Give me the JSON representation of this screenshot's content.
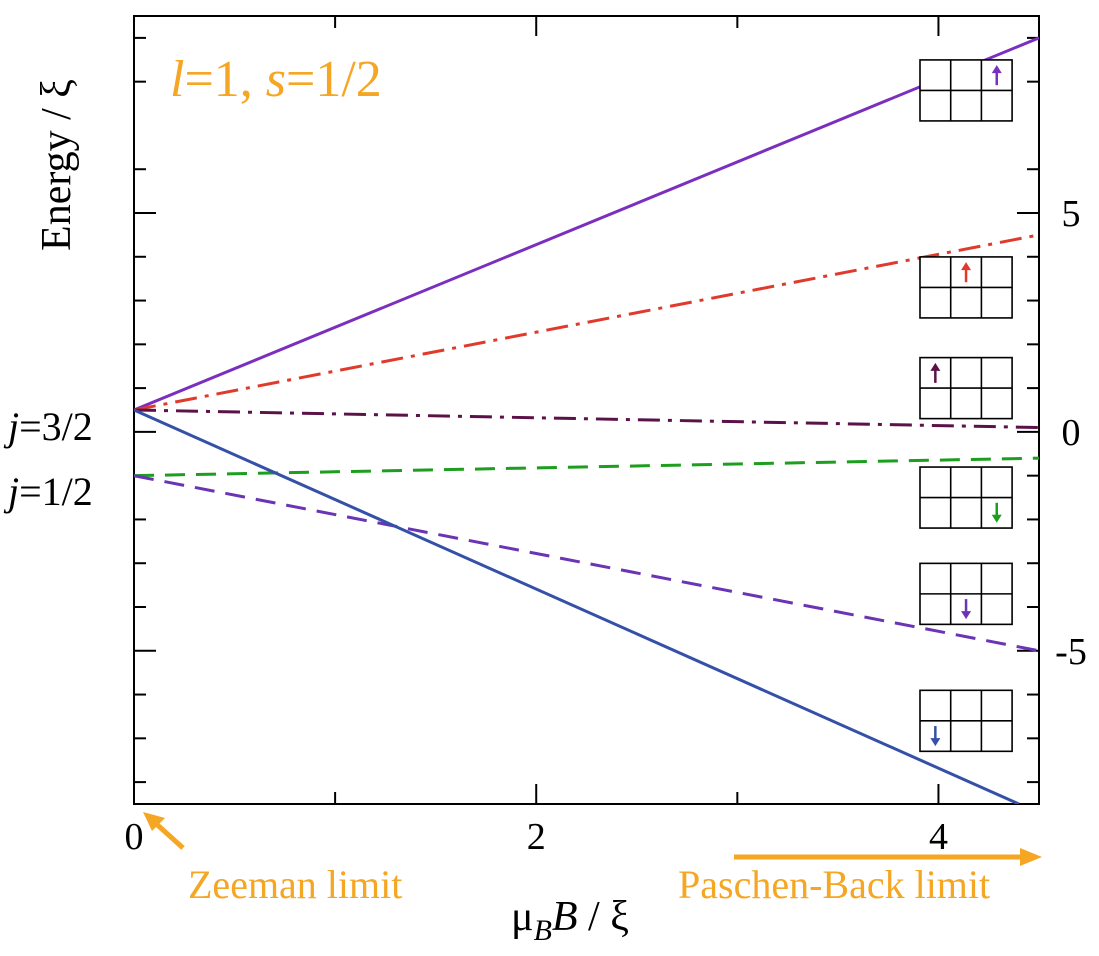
{
  "chart_data": {
    "type": "line",
    "title": "l=1, s=1/2",
    "title_parts": {
      "l": "l",
      "l_eq": "=1, ",
      "s": "s",
      "s_eq": "=1/2"
    },
    "title_color": "#f5a623",
    "xlabel": "μBB / ξ",
    "xlabel_parts": {
      "mu": "μ",
      "sub": "B",
      "var": "B",
      "rest": " / ξ"
    },
    "ylabel": "Energy / ξ",
    "xlim": [
      0,
      4.5
    ],
    "ylim": [
      -8.5,
      9.5
    ],
    "x_ticks": [
      0,
      2,
      4
    ],
    "x_tick_labels": [
      "0",
      "2",
      "4"
    ],
    "x_minor_ticks": [
      1,
      3
    ],
    "y_ticks_right": [
      5,
      0,
      -5
    ],
    "y_tick_labels_right": [
      "5",
      "0",
      "-5"
    ],
    "y_minor_ticks": [
      9,
      8,
      6,
      4,
      3,
      2,
      1,
      -1,
      -2,
      -3,
      -4,
      -6,
      -7,
      -8
    ],
    "level_labels": [
      {
        "j_part": "j",
        "value_part": "=3/2",
        "y": 0.5
      },
      {
        "j_part": "j",
        "value_part": "=1/2",
        "y": -1
      }
    ],
    "series": [
      {
        "color": "#7b2fbe",
        "dash": "solid",
        "x": [
          0,
          4.5
        ],
        "y": [
          0.5,
          9.0
        ]
      },
      {
        "color": "#e03a2c",
        "dash": "dashdot",
        "x": [
          0,
          4.5
        ],
        "y": [
          0.5,
          4.5
        ]
      },
      {
        "color": "#5a1248",
        "dash": "dashdot",
        "x": [
          0,
          4.5
        ],
        "y": [
          0.5,
          0.1
        ]
      },
      {
        "color": "#1e9e1e",
        "dash": "dashed",
        "x": [
          0,
          4.5
        ],
        "y": [
          -1.0,
          -0.6
        ]
      },
      {
        "color": "#6a34b4",
        "dash": "dashed",
        "x": [
          0,
          4.5
        ],
        "y": [
          -1.0,
          -5.0
        ]
      },
      {
        "color": "#3450a8",
        "dash": "solid",
        "x": [
          0,
          4.4
        ],
        "y": [
          0.5,
          -8.5
        ]
      }
    ],
    "insets": [
      {
        "y_center": 7.8,
        "col": 2,
        "row": 0,
        "arrow": "up",
        "color": "#7b2fbe"
      },
      {
        "y_center": 3.3,
        "col": 1,
        "row": 0,
        "arrow": "up",
        "color": "#e03a2c"
      },
      {
        "y_center": 1.0,
        "col": 0,
        "row": 0,
        "arrow": "up",
        "color": "#5a1248"
      },
      {
        "y_center": -1.5,
        "col": 2,
        "row": 1,
        "arrow": "down",
        "color": "#1e9e1e"
      },
      {
        "y_center": -3.7,
        "col": 1,
        "row": 1,
        "arrow": "down",
        "color": "#6a34b4"
      },
      {
        "y_center": -6.6,
        "col": 0,
        "row": 1,
        "arrow": "down",
        "color": "#3450a8"
      }
    ],
    "annotations": {
      "zeeman": {
        "text": "Zeeman limit",
        "color": "#f5a623"
      },
      "paschen_back": {
        "text": "Paschen-Back limit",
        "color": "#f5a623"
      }
    },
    "grid": false,
    "legend": "none"
  }
}
